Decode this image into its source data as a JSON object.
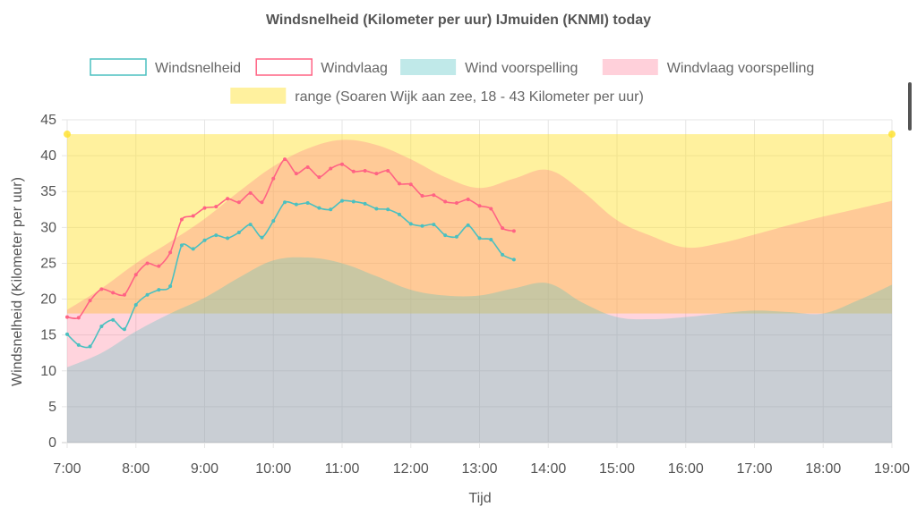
{
  "colors": {
    "wind": "#4bc0c0",
    "gust": "#ff6384",
    "wind_forecast_fill": "rgba(75,192,192,0.30)",
    "gust_forecast_fill": "rgba(255,99,132,0.28)",
    "range_fill": "rgba(255,225,40,0.45)",
    "grid": "#e6e6e6",
    "zero_line": "#cccccc"
  },
  "chart_data": {
    "type": "line",
    "title": "Windsnelheid (Kilometer per uur) IJmuiden (KNMI) today",
    "xlabel": "Tijd",
    "ylabel": "Windsnelheid (Kilometer per uur)",
    "ylim": [
      0,
      45
    ],
    "xlim": [
      "7:00",
      "19:00"
    ],
    "y_ticks": [
      0,
      5,
      10,
      15,
      20,
      25,
      30,
      35,
      40,
      45
    ],
    "x_ticks": [
      "7:00",
      "8:00",
      "9:00",
      "10:00",
      "11:00",
      "12:00",
      "13:00",
      "14:00",
      "15:00",
      "16:00",
      "17:00",
      "18:00",
      "19:00"
    ],
    "grid": true,
    "legend_position": "top",
    "legend": [
      {
        "label": "Windsnelheid",
        "style": "line",
        "color": "#4bc0c0"
      },
      {
        "label": "Windvlaag",
        "style": "line",
        "color": "#ff6384"
      },
      {
        "label": "Wind voorspelling",
        "style": "fill",
        "color": "rgba(75,192,192,0.35)"
      },
      {
        "label": "Windvlaag voorspelling",
        "style": "fill",
        "color": "rgba(255,99,132,0.30)"
      },
      {
        "label": "range (Soaren Wijk aan zee, 18 - 43 Kilometer per uur)",
        "style": "fill",
        "color": "rgba(255,225,40,0.45)"
      }
    ],
    "range": {
      "low": 18,
      "high": 43,
      "x": [
        "7:00",
        "19:00"
      ]
    },
    "series": [
      {
        "name": "Windsnelheid",
        "kind": "line",
        "x": [
          "7:00",
          "7:10",
          "7:20",
          "7:30",
          "7:40",
          "7:50",
          "8:00",
          "8:10",
          "8:20",
          "8:30",
          "8:40",
          "8:50",
          "9:00",
          "9:10",
          "9:20",
          "9:30",
          "9:40",
          "9:50",
          "10:00",
          "10:10",
          "10:20",
          "10:30",
          "10:40",
          "10:50",
          "11:00",
          "11:10",
          "11:20",
          "11:30",
          "11:40",
          "11:50",
          "12:00",
          "12:10",
          "12:20",
          "12:30",
          "12:40",
          "12:50",
          "13:00",
          "13:10",
          "13:20",
          "13:30"
        ],
        "y": [
          15.1,
          13.6,
          13.4,
          16.2,
          17.1,
          15.8,
          19.2,
          20.6,
          21.3,
          21.8,
          27.5,
          27.0,
          28.2,
          28.9,
          28.5,
          29.3,
          30.4,
          28.6,
          30.9,
          33.5,
          33.2,
          33.4,
          32.7,
          32.5,
          33.7,
          33.6,
          33.3,
          32.6,
          32.5,
          31.8,
          30.5,
          30.2,
          30.4,
          28.9,
          28.7,
          30.3,
          28.5,
          28.3,
          26.2,
          25.5
        ]
      },
      {
        "name": "Windvlaag",
        "kind": "line",
        "x": [
          "7:00",
          "7:10",
          "7:20",
          "7:30",
          "7:40",
          "7:50",
          "8:00",
          "8:10",
          "8:20",
          "8:30",
          "8:40",
          "8:50",
          "9:00",
          "9:10",
          "9:20",
          "9:30",
          "9:40",
          "9:50",
          "10:00",
          "10:10",
          "10:20",
          "10:30",
          "10:40",
          "10:50",
          "11:00",
          "11:10",
          "11:20",
          "11:30",
          "11:40",
          "11:50",
          "12:00",
          "12:10",
          "12:20",
          "12:30",
          "12:40",
          "12:50",
          "13:00",
          "13:10",
          "13:20",
          "13:30"
        ],
        "y": [
          17.5,
          17.4,
          19.8,
          21.4,
          20.9,
          20.6,
          23.4,
          25.0,
          24.6,
          26.5,
          31.1,
          31.6,
          32.7,
          32.9,
          34.0,
          33.5,
          34.8,
          33.5,
          36.8,
          39.5,
          37.5,
          38.4,
          37.0,
          38.2,
          38.8,
          37.8,
          37.9,
          37.5,
          37.9,
          36.1,
          36.0,
          34.4,
          34.5,
          33.6,
          33.4,
          33.9,
          33.0,
          32.6,
          29.9,
          29.5
        ]
      },
      {
        "name": "Wind voorspelling",
        "kind": "area",
        "x": [
          "7:00",
          "7:30",
          "8:00",
          "8:30",
          "9:00",
          "9:30",
          "10:00",
          "10:30",
          "11:00",
          "11:30",
          "12:00",
          "12:30",
          "13:00",
          "13:30",
          "14:00",
          "14:30",
          "15:00",
          "15:30",
          "16:00",
          "16:30",
          "17:00",
          "17:30",
          "18:00",
          "18:30",
          "19:00"
        ],
        "y": [
          10.5,
          12.5,
          15.5,
          18.0,
          20.2,
          23.0,
          25.4,
          25.8,
          25.0,
          23.2,
          21.3,
          20.5,
          20.5,
          21.5,
          22.2,
          19.5,
          17.5,
          17.2,
          17.5,
          18.0,
          18.4,
          18.2,
          18.0,
          19.8,
          22.0
        ]
      },
      {
        "name": "Windvlaag voorspelling",
        "kind": "area",
        "x": [
          "7:00",
          "7:30",
          "8:00",
          "8:30",
          "9:00",
          "9:30",
          "10:00",
          "10:30",
          "11:00",
          "11:30",
          "12:00",
          "12:30",
          "13:00",
          "13:30",
          "14:00",
          "14:30",
          "15:00",
          "15:30",
          "16:00",
          "16:30",
          "17:00",
          "17:30",
          "18:00",
          "18:30",
          "19:00"
        ],
        "y": [
          18.5,
          21.5,
          25.0,
          28.0,
          31.2,
          35.0,
          38.5,
          41.0,
          42.2,
          41.5,
          39.5,
          37.0,
          35.5,
          36.8,
          38.0,
          35.0,
          31.0,
          28.8,
          27.2,
          27.8,
          29.0,
          30.3,
          31.5,
          32.6,
          33.7
        ]
      }
    ]
  }
}
